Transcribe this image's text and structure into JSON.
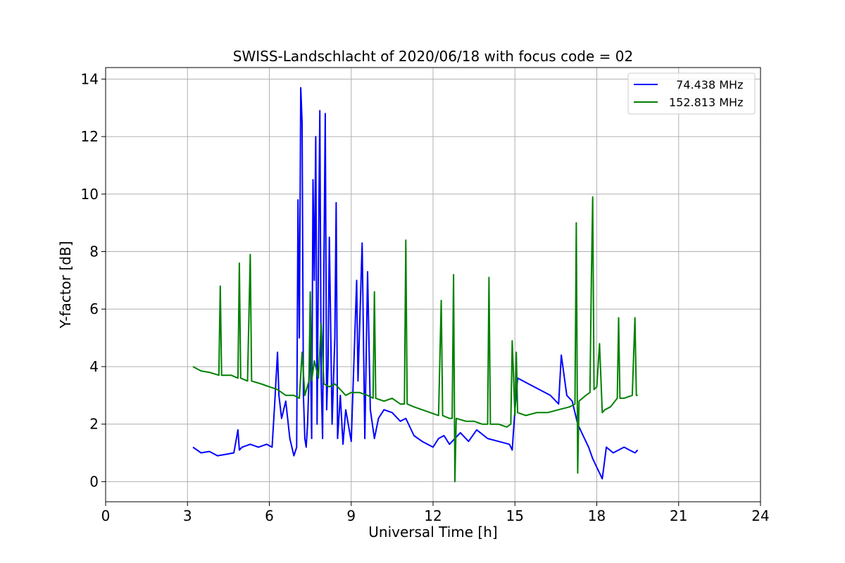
{
  "chart_data": {
    "type": "line",
    "title": "SWISS-Landschlacht of 2020/06/18 with focus code = 02",
    "xlabel": "Universal Time [h]",
    "ylabel": "Y-factor [dB]",
    "xlim": [
      0,
      24
    ],
    "ylim": [
      -0.7,
      14.4
    ],
    "xticks": [
      0,
      3,
      6,
      9,
      12,
      15,
      18,
      21,
      24
    ],
    "yticks": [
      0,
      2,
      4,
      6,
      8,
      10,
      12,
      14
    ],
    "grid": true,
    "legend_position": "top-right",
    "series": [
      {
        "name": "  74.438 MHz",
        "color": "#0000ff",
        "x": [
          3.2,
          3.5,
          3.8,
          4.1,
          4.4,
          4.7,
          4.85,
          4.9,
          5.0,
          5.3,
          5.6,
          5.9,
          6.1,
          6.2,
          6.3,
          6.35,
          6.45,
          6.6,
          6.75,
          6.9,
          7.0,
          7.05,
          7.1,
          7.15,
          7.2,
          7.25,
          7.3,
          7.35,
          7.4,
          7.5,
          7.55,
          7.6,
          7.65,
          7.7,
          7.75,
          7.8,
          7.85,
          7.9,
          7.95,
          8.0,
          8.05,
          8.1,
          8.15,
          8.2,
          8.3,
          8.4,
          8.45,
          8.5,
          8.6,
          8.7,
          8.8,
          9.0,
          9.2,
          9.25,
          9.4,
          9.5,
          9.6,
          9.7,
          9.85,
          10.0,
          10.2,
          10.5,
          10.8,
          11.0,
          11.3,
          11.6,
          12.0,
          12.2,
          12.4,
          12.6,
          12.8,
          13.0,
          13.3,
          13.6,
          14.0,
          14.4,
          14.8,
          14.9,
          15.0,
          15.1,
          15.5,
          15.9,
          16.3,
          16.6,
          16.7,
          16.9,
          17.1,
          17.3,
          17.5,
          17.7,
          17.85,
          18.0,
          18.1,
          18.2,
          18.35,
          18.6,
          19.0,
          19.4,
          19.5
        ],
        "y": [
          1.2,
          1.0,
          1.05,
          0.9,
          0.95,
          1.0,
          1.8,
          1.1,
          1.2,
          1.3,
          1.2,
          1.3,
          1.2,
          2.8,
          4.5,
          3.0,
          2.2,
          2.8,
          1.5,
          0.9,
          1.2,
          9.8,
          5.0,
          13.7,
          12.5,
          3.0,
          1.5,
          1.2,
          2.0,
          5.0,
          1.5,
          10.5,
          7.0,
          12.0,
          2.0,
          8.0,
          12.9,
          3.5,
          1.5,
          7.5,
          12.8,
          2.5,
          4.0,
          8.5,
          2.0,
          5.0,
          9.7,
          1.5,
          3.0,
          1.3,
          2.5,
          1.4,
          7.0,
          3.5,
          8.3,
          1.5,
          7.3,
          2.5,
          1.5,
          2.2,
          2.5,
          2.4,
          2.1,
          2.2,
          1.6,
          1.4,
          1.2,
          1.5,
          1.6,
          1.3,
          1.5,
          1.7,
          1.4,
          1.8,
          1.5,
          1.4,
          1.3,
          1.1,
          2.5,
          3.6,
          3.4,
          3.2,
          3.0,
          2.7,
          4.4,
          3.0,
          2.8,
          2.0,
          1.6,
          1.2,
          0.8,
          0.5,
          0.3,
          0.1,
          1.2,
          1.0,
          1.2,
          1.0,
          1.1
        ]
      },
      {
        "name": "152.813 MHz",
        "color": "#008000",
        "x": [
          3.2,
          3.5,
          3.8,
          4.15,
          4.2,
          4.25,
          4.6,
          4.85,
          4.9,
          4.95,
          5.2,
          5.3,
          5.35,
          5.7,
          6.0,
          6.3,
          6.6,
          6.9,
          7.1,
          7.2,
          7.3,
          7.45,
          7.5,
          7.55,
          7.65,
          7.8,
          7.9,
          8.0,
          8.2,
          8.4,
          8.6,
          8.8,
          9.0,
          9.3,
          9.6,
          9.8,
          9.85,
          9.9,
          10.2,
          10.5,
          10.8,
          10.95,
          11.0,
          11.05,
          11.3,
          11.6,
          11.9,
          12.2,
          12.3,
          12.35,
          12.6,
          12.7,
          12.75,
          12.8,
          12.85,
          13.2,
          13.5,
          13.8,
          14.0,
          14.05,
          14.1,
          14.4,
          14.7,
          14.85,
          14.9,
          15.0,
          15.05,
          15.1,
          15.4,
          15.8,
          16.2,
          16.6,
          17.0,
          17.2,
          17.25,
          17.3,
          17.35,
          17.6,
          17.75,
          17.8,
          17.85,
          17.9,
          18.0,
          18.1,
          18.2,
          18.3,
          18.5,
          18.75,
          18.8,
          18.85,
          19.0,
          19.3,
          19.4,
          19.45,
          19.5
        ],
        "y": [
          4.0,
          3.85,
          3.8,
          3.7,
          6.8,
          3.7,
          3.7,
          3.6,
          7.6,
          3.6,
          3.5,
          7.9,
          3.5,
          3.4,
          3.3,
          3.2,
          3.0,
          3.0,
          2.9,
          4.5,
          3.0,
          3.5,
          6.6,
          3.5,
          4.2,
          3.6,
          5.5,
          3.4,
          3.3,
          3.4,
          3.2,
          3.0,
          3.1,
          3.1,
          3.0,
          2.9,
          6.6,
          2.9,
          2.8,
          2.9,
          2.7,
          2.7,
          8.4,
          2.7,
          2.6,
          2.5,
          2.4,
          2.3,
          6.3,
          2.3,
          2.2,
          2.2,
          7.2,
          0.0,
          2.2,
          2.1,
          2.1,
          2.0,
          2.0,
          7.1,
          2.0,
          2.0,
          1.9,
          2.0,
          4.9,
          2.3,
          4.5,
          2.4,
          2.3,
          2.4,
          2.4,
          2.5,
          2.6,
          2.7,
          9.0,
          0.3,
          2.8,
          3.0,
          3.1,
          7.0,
          9.9,
          3.2,
          3.3,
          4.8,
          2.4,
          2.5,
          2.6,
          2.9,
          5.7,
          2.9,
          2.9,
          3.0,
          5.7,
          3.0,
          3.0
        ]
      }
    ]
  }
}
